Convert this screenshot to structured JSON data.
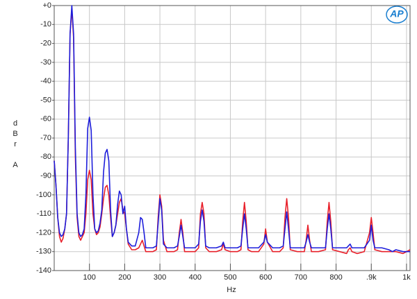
{
  "chart_data": {
    "type": "line",
    "x_label": "Hz",
    "y_label": "dBr A",
    "logo": "AP",
    "x": [
      0,
      5,
      10,
      15,
      20,
      25,
      30,
      35,
      40,
      45,
      50,
      55,
      60,
      65,
      70,
      75,
      80,
      85,
      90,
      95,
      100,
      105,
      110,
      115,
      120,
      125,
      130,
      135,
      140,
      145,
      150,
      155,
      160,
      165,
      170,
      175,
      180,
      185,
      190,
      195,
      200,
      205,
      210,
      220,
      230,
      240,
      245,
      250,
      255,
      260,
      270,
      280,
      290,
      295,
      300,
      305,
      310,
      320,
      330,
      340,
      350,
      355,
      360,
      365,
      370,
      380,
      390,
      400,
      410,
      415,
      420,
      425,
      430,
      440,
      460,
      475,
      480,
      485,
      500,
      520,
      530,
      535,
      540,
      545,
      550,
      560,
      580,
      595,
      600,
      605,
      620,
      640,
      650,
      655,
      660,
      665,
      670,
      690,
      710,
      715,
      720,
      725,
      730,
      750,
      770,
      775,
      780,
      785,
      790,
      810,
      830,
      835,
      840,
      845,
      860,
      880,
      895,
      900,
      905,
      910,
      930,
      950,
      960,
      970,
      990,
      1010
    ],
    "series": [
      {
        "color": "#e8202a",
        "values": [
          -82,
          -95,
          -112,
          -122,
          -125,
          -123,
          -118,
          -110,
          -70,
          -15,
          -2,
          -17,
          -80,
          -112,
          -122,
          -124,
          -122,
          -120,
          -110,
          -92,
          -87,
          -92,
          -110,
          -118,
          -121,
          -120,
          -117,
          -110,
          -102,
          -96,
          -95,
          -100,
          -112,
          -122,
          -120,
          -116,
          -110,
          -104,
          -102,
          -108,
          -110,
          -118,
          -126,
          -129,
          -129,
          -128,
          -126,
          -124,
          -127,
          -130,
          -130,
          -130,
          -129,
          -112,
          -100,
          -106,
          -124,
          -130,
          -130,
          -130,
          -129,
          -120,
          -113,
          -120,
          -130,
          -130,
          -130,
          -130,
          -128,
          -110,
          -104,
          -110,
          -128,
          -130,
          -130,
          -129,
          -126,
          -129,
          -130,
          -130,
          -129,
          -114,
          -104,
          -114,
          -129,
          -130,
          -130,
          -126,
          -118,
          -125,
          -130,
          -130,
          -128,
          -112,
          -102,
          -112,
          -129,
          -130,
          -130,
          -124,
          -116,
          -124,
          -130,
          -130,
          -129,
          -114,
          -104,
          -114,
          -129,
          -130,
          -131,
          -129,
          -128,
          -130,
          -131,
          -130,
          -120,
          -112,
          -120,
          -129,
          -130,
          -130,
          -130,
          -130,
          -131,
          -129
        ]
      },
      {
        "color": "#1d1ddb",
        "values": [
          -82,
          -95,
          -112,
          -120,
          -122,
          -121,
          -118,
          -110,
          -70,
          -15,
          0,
          -15,
          -75,
          -110,
          -120,
          -122,
          -121,
          -118,
          -100,
          -65,
          -59,
          -66,
          -100,
          -118,
          -120,
          -119,
          -115,
          -108,
          -88,
          -78,
          -76,
          -82,
          -108,
          -122,
          -120,
          -116,
          -105,
          -98,
          -100,
          -110,
          -106,
          -118,
          -125,
          -127,
          -127,
          -120,
          -112,
          -113,
          -120,
          -128,
          -128,
          -128,
          -127,
          -115,
          -102,
          -108,
          -126,
          -128,
          -128,
          -128,
          -127,
          -122,
          -116,
          -122,
          -128,
          -128,
          -128,
          -128,
          -126,
          -114,
          -108,
          -114,
          -127,
          -128,
          -128,
          -127,
          -125,
          -128,
          -128,
          -128,
          -127,
          -118,
          -110,
          -118,
          -128,
          -128,
          -128,
          -125,
          -121,
          -125,
          -128,
          -128,
          -127,
          -118,
          -109,
          -118,
          -128,
          -128,
          -128,
          -125,
          -121,
          -125,
          -128,
          -128,
          -128,
          -118,
          -110,
          -118,
          -128,
          -128,
          -128,
          -127,
          -126,
          -128,
          -128,
          -128,
          -124,
          -116,
          -124,
          -128,
          -128,
          -129,
          -130,
          -129,
          -130,
          -130
        ]
      }
    ],
    "xlim": [
      0,
      1010
    ],
    "ylim": [
      -140,
      0
    ],
    "xticks": [
      100,
      200,
      300,
      400,
      500,
      600,
      700,
      800,
      {
        "value": 900,
        "label": ".9k"
      },
      {
        "value": 1000,
        "label": "1k"
      }
    ],
    "yticks": [
      {
        "value": 0,
        "label": "+0"
      },
      -10,
      -20,
      -30,
      -40,
      -50,
      -60,
      -70,
      -80,
      -90,
      -100,
      -110,
      -120,
      -130,
      -140
    ],
    "grid": true
  }
}
